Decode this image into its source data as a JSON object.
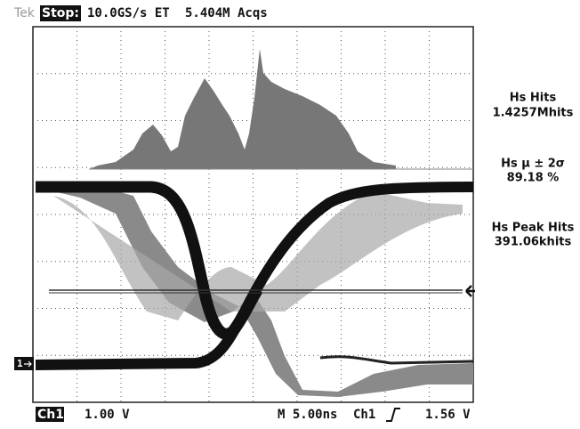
{
  "header": {
    "brand": "Tek",
    "state": "Stop:",
    "sample_rate": "10.0GS/s ET",
    "acquisitions": "5.404M Acqs"
  },
  "measurements": [
    {
      "label": "Hs Hits",
      "value": "1.4257Mhits"
    },
    {
      "label": "Hs μ ± 2σ",
      "value": "89.18 %"
    },
    {
      "label": "Hs Peak Hits",
      "value": "391.06khits"
    }
  ],
  "channel_marker": "1",
  "footer": {
    "channel": "Ch1",
    "scale": "1.00 V",
    "timebase": "M 5.00ns",
    "trigger_source": "Ch1",
    "trigger_level": "1.56 V"
  }
}
